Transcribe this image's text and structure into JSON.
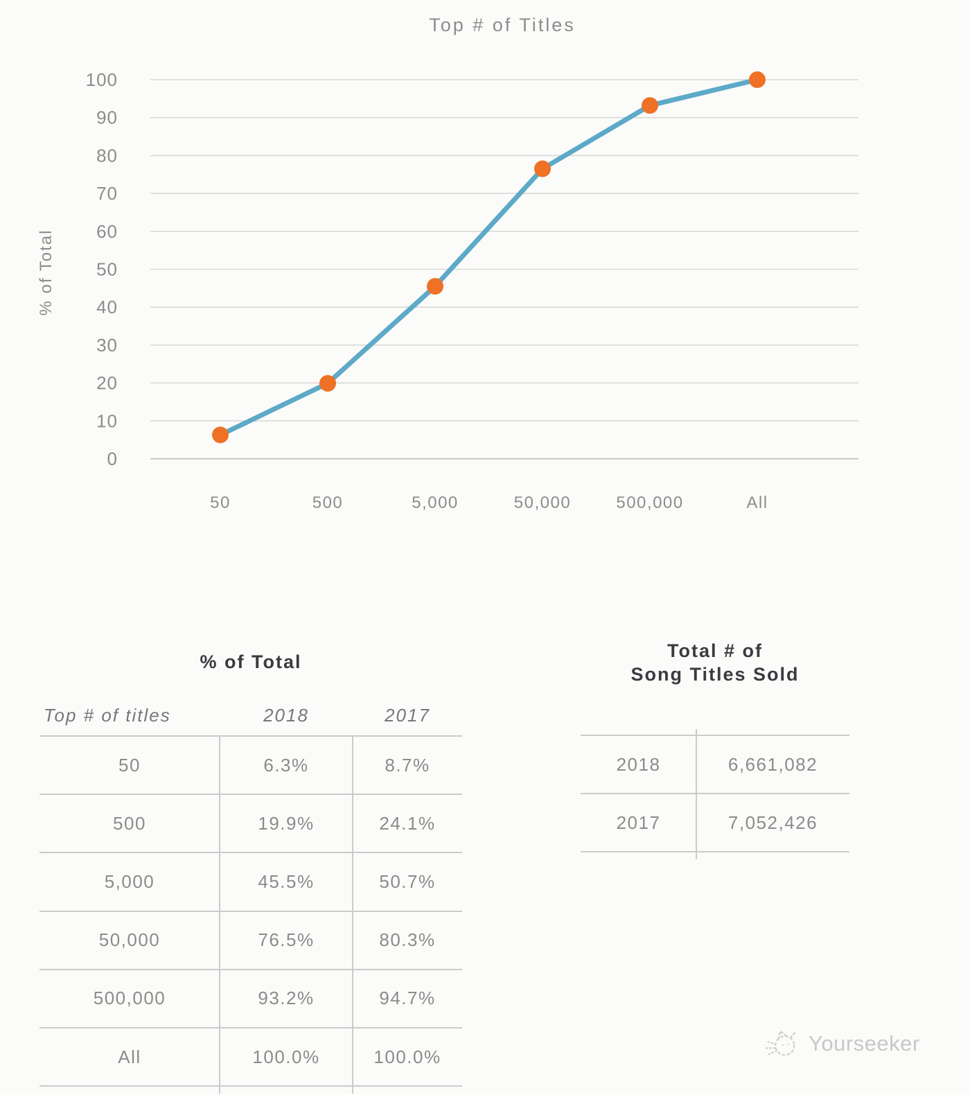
{
  "chart_data": {
    "type": "line",
    "title": "Top # of Titles",
    "xlabel": "",
    "ylabel": "% of Total",
    "categories": [
      "50",
      "500",
      "5,000",
      "50,000",
      "500,000",
      "All"
    ],
    "series": [
      {
        "name": "2018",
        "values": [
          6.3,
          19.9,
          45.5,
          76.5,
          93.2,
          100.0
        ]
      }
    ],
    "ylim": [
      0,
      100
    ],
    "yticks": [
      0,
      10,
      20,
      30,
      40,
      50,
      60,
      70,
      80,
      90,
      100
    ],
    "grid": true,
    "legend": "none",
    "line_color": "#5da9c8",
    "marker_color": "#ee7125",
    "grid_color": "#d8d8d8",
    "axis_text_color": "#8c8c8c"
  },
  "pct_table": {
    "title": "% of Total",
    "columns": [
      "Top # of titles",
      "2018",
      "2017"
    ],
    "rows": [
      [
        "50",
        "6.3%",
        "8.7%"
      ],
      [
        "500",
        "19.9%",
        "24.1%"
      ],
      [
        "5,000",
        "45.5%",
        "50.7%"
      ],
      [
        "50,000",
        "76.5%",
        "80.3%"
      ],
      [
        "500,000",
        "93.2%",
        "94.7%"
      ],
      [
        "All",
        "100.0%",
        "100.0%"
      ]
    ]
  },
  "totals_table": {
    "title_line1": "Total # of",
    "title_line2": "Song Titles Sold",
    "rows": [
      [
        "2018",
        "6,661,082"
      ],
      [
        "2017",
        "7,052,426"
      ]
    ]
  },
  "watermark": {
    "label": "Yourseeker",
    "icon": "cat-sketch-icon"
  }
}
